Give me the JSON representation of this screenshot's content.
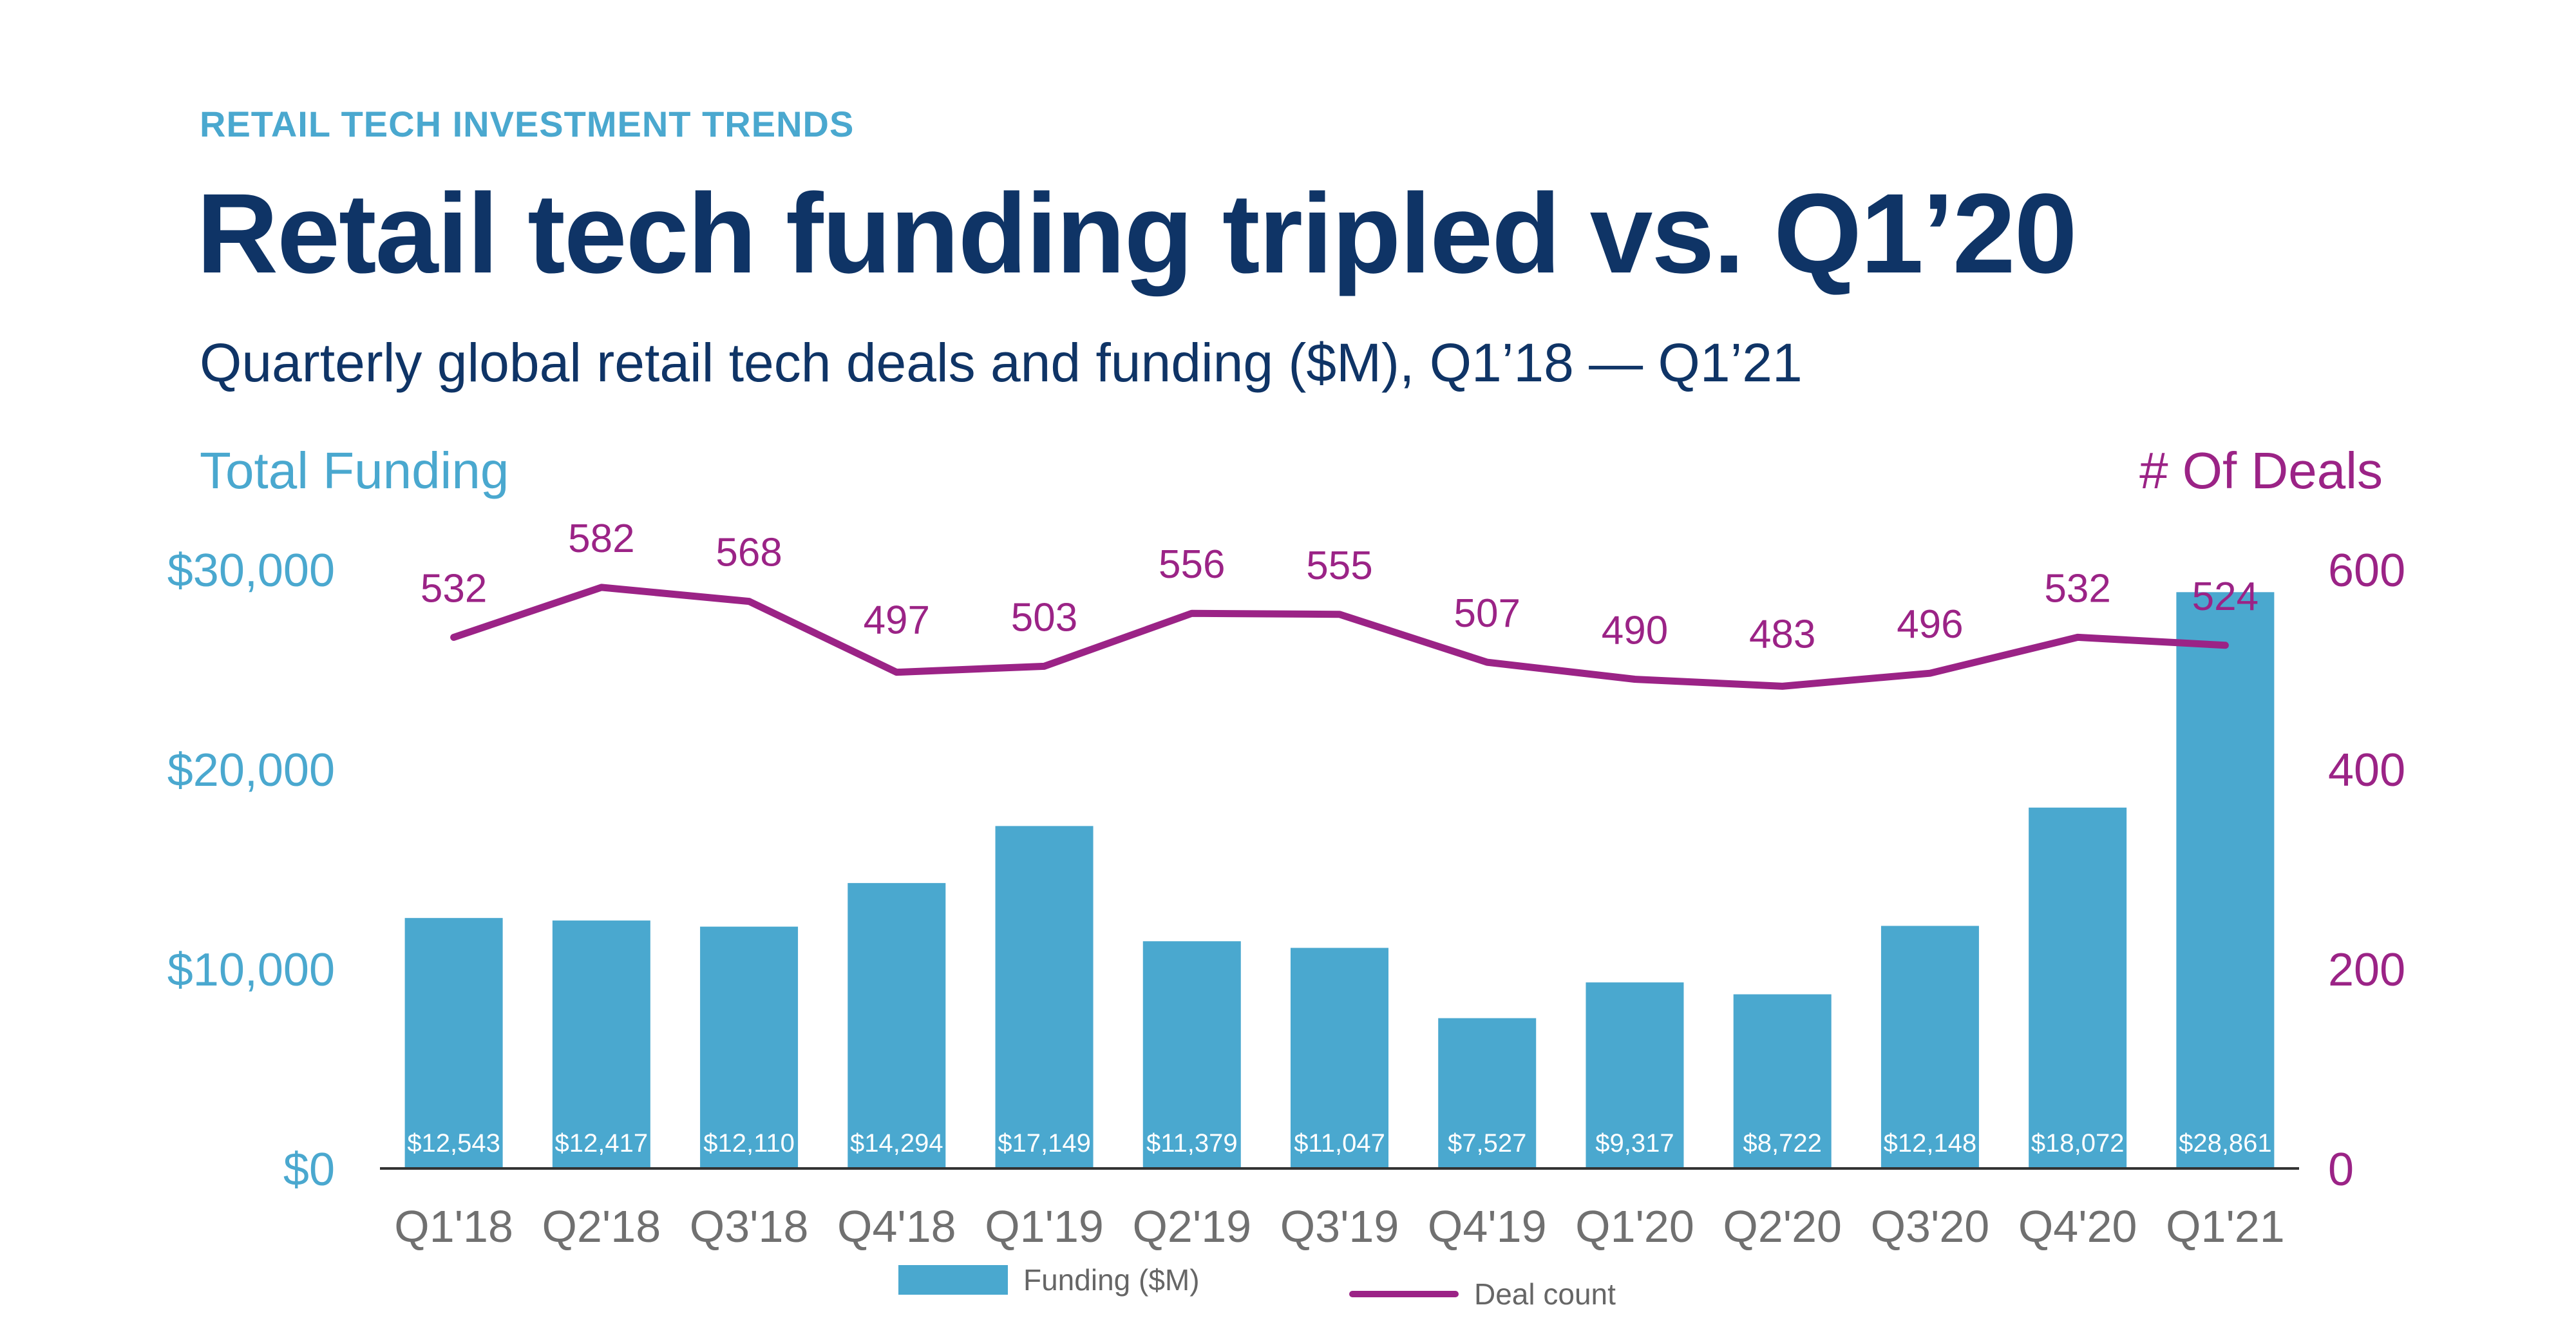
{
  "header": {
    "eyebrow": "RETAIL TECH INVESTMENT TRENDS",
    "title": "Retail tech funding tripled vs. Q1’20",
    "subtitle": "Quarterly global retail tech deals and funding ($M), Q1’18 — Q1’21"
  },
  "colors": {
    "bar": "#4aa8cf",
    "line": "#9b2386",
    "title": "#0f3466",
    "tick": "#707070"
  },
  "chart_data": {
    "type": "bar",
    "title": "Retail tech funding tripled vs. Q1’20",
    "subtitle": "Quarterly global retail tech deals and funding ($M), Q1’18 — Q1’21",
    "categories": [
      "Q1'18",
      "Q2'18",
      "Q3'18",
      "Q4'18",
      "Q1'19",
      "Q2'19",
      "Q3'19",
      "Q4'19",
      "Q1'20",
      "Q2'20",
      "Q3'20",
      "Q4'20",
      "Q1'21"
    ],
    "series": [
      {
        "name": "Funding ($M)",
        "type": "bar",
        "axis": "left",
        "values": [
          12543,
          12417,
          12110,
          14294,
          17149,
          11379,
          11047,
          7527,
          9317,
          8722,
          12148,
          18072,
          28861
        ],
        "labels": [
          "$12,543",
          "$12,417",
          "$12,110",
          "$14,294",
          "$17,149",
          "$11,379",
          "$11,047",
          "$7,527",
          "$9,317",
          "$8,722",
          "$12,148",
          "$18,072",
          "$28,861"
        ]
      },
      {
        "name": "Deal count",
        "type": "line",
        "axis": "right",
        "values": [
          532,
          582,
          568,
          497,
          503,
          556,
          555,
          507,
          490,
          483,
          496,
          532,
          524
        ]
      }
    ],
    "ylabel": "Total Funding",
    "y2label": "# Of Deals",
    "ylim": [
      0,
      30000
    ],
    "y2lim": [
      0,
      600
    ],
    "yticks": [
      0,
      10000,
      20000,
      30000
    ],
    "ytick_labels": [
      "$0",
      "$10,000",
      "$20,000",
      "$30,000"
    ],
    "y2ticks": [
      0,
      200,
      400,
      600
    ],
    "y2tick_labels": [
      "0",
      "200",
      "400",
      "600"
    ],
    "grid": false,
    "legend": "bottom"
  }
}
